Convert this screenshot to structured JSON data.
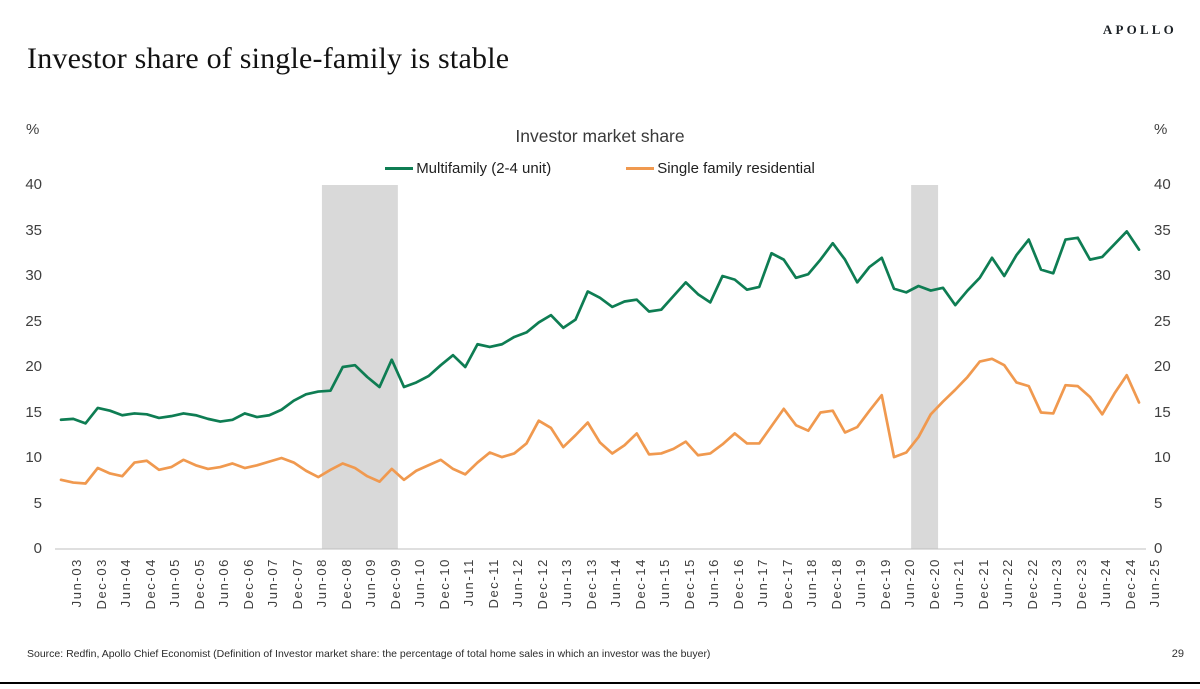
{
  "page": {
    "brand": "APOLLO",
    "title": "Investor share of single-family is stable",
    "source": "Source: Redfin, Apollo Chief Economist (Definition of Investor market share: the percentage of total home sales in which an investor was the buyer)",
    "page_number": "29"
  },
  "chart_data": {
    "type": "line",
    "title": "Investor market share",
    "xlabel": "",
    "ylabel": "%",
    "y_unit": "%",
    "ylim": [
      0,
      40
    ],
    "yticks": [
      0,
      5,
      10,
      15,
      20,
      25,
      30,
      35,
      40
    ],
    "grid": "off",
    "legend_position": "top",
    "x_label_every": 2,
    "x_labels": [
      "Jun-03",
      "Dec-03",
      "Jun-04",
      "Dec-04",
      "Jun-05",
      "Dec-05",
      "Jun-06",
      "Dec-06",
      "Jun-07",
      "Dec-07",
      "Jun-08",
      "Dec-08",
      "Jun-09",
      "Dec-09",
      "Jun-10",
      "Dec-10",
      "Jun-11",
      "Dec-11",
      "Jun-12",
      "Dec-12",
      "Jun-13",
      "Dec-13",
      "Jun-14",
      "Dec-14",
      "Jun-15",
      "Dec-15",
      "Jun-16",
      "Dec-16",
      "Jun-17",
      "Dec-17",
      "Jun-18",
      "Dec-18",
      "Jun-19",
      "Dec-19",
      "Jun-20",
      "Dec-20",
      "Jun-21",
      "Dec-21",
      "Jun-22",
      "Dec-22",
      "Jun-23",
      "Dec-23",
      "Jun-24",
      "Dec-24",
      "Jun-25"
    ],
    "series": [
      {
        "name": "Multifamily (2-4 unit)",
        "color": "#0e7d53",
        "values": [
          14.2,
          14.3,
          13.8,
          15.5,
          15.2,
          14.7,
          14.9,
          14.8,
          14.4,
          14.6,
          14.9,
          14.7,
          14.3,
          14.0,
          14.2,
          14.9,
          14.5,
          14.7,
          15.3,
          16.3,
          17.0,
          17.3,
          17.4,
          20.0,
          20.2,
          18.9,
          17.8,
          20.8,
          17.8,
          18.3,
          19.0,
          20.2,
          21.3,
          20.0,
          22.5,
          22.2,
          22.5,
          23.3,
          23.8,
          24.9,
          25.7,
          24.3,
          25.2,
          28.3,
          27.6,
          26.6,
          27.2,
          27.4,
          26.1,
          26.3,
          27.8,
          29.3,
          28.0,
          27.1,
          30.0,
          29.6,
          28.5,
          28.8,
          32.5,
          31.8,
          29.8,
          30.2,
          31.8,
          33.6,
          31.8,
          29.3,
          31.0,
          32.0,
          28.6,
          28.2,
          28.9,
          28.4,
          28.7,
          26.8,
          28.4,
          29.8,
          32.0,
          30.0,
          32.3,
          34.0,
          30.7,
          30.3,
          34.0,
          34.2,
          31.8,
          32.1,
          33.5,
          34.9,
          32.9
        ]
      },
      {
        "name": "Single family residential",
        "color": "#f0994f",
        "values": [
          7.6,
          7.3,
          7.2,
          8.9,
          8.3,
          8.0,
          9.5,
          9.7,
          8.7,
          9.0,
          9.8,
          9.2,
          8.8,
          9.0,
          9.4,
          8.9,
          9.2,
          9.6,
          10.0,
          9.5,
          8.6,
          7.9,
          8.7,
          9.4,
          8.9,
          8.0,
          7.4,
          8.8,
          7.6,
          8.6,
          9.2,
          9.8,
          8.8,
          8.2,
          9.5,
          10.6,
          10.1,
          10.5,
          11.6,
          14.1,
          13.3,
          11.2,
          12.5,
          13.9,
          11.7,
          10.5,
          11.4,
          12.7,
          10.4,
          10.5,
          11.0,
          11.8,
          10.3,
          10.5,
          11.5,
          12.7,
          11.6,
          11.6,
          13.5,
          15.4,
          13.6,
          13.0,
          15.0,
          15.2,
          12.8,
          13.4,
          15.2,
          16.9,
          10.1,
          10.6,
          12.3,
          14.8,
          16.2,
          17.5,
          18.9,
          20.6,
          20.9,
          20.2,
          18.3,
          17.9,
          15.0,
          14.9,
          18.0,
          17.9,
          16.7,
          14.8,
          17.1,
          19.1,
          16.1
        ]
      }
    ],
    "recession_bands": [
      {
        "start_index": 21.3,
        "end_index": 27.5
      },
      {
        "start_index": 69.4,
        "end_index": 71.6
      }
    ],
    "band_color": "#d9d9d9",
    "axis_line_color": "#bfbfbf"
  }
}
